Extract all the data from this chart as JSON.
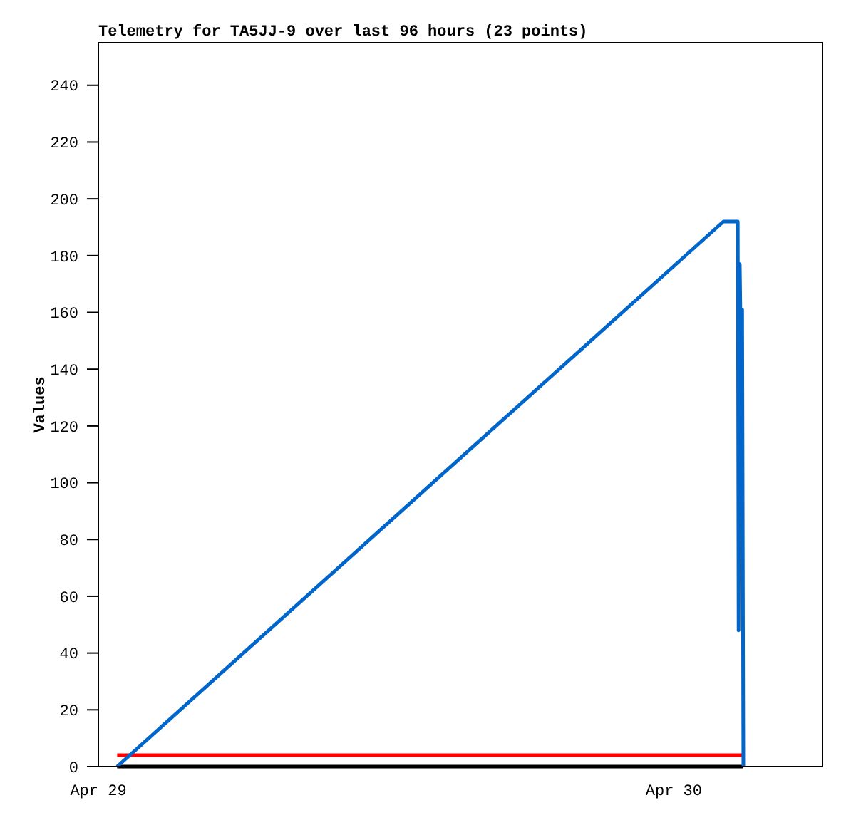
{
  "chart_data": {
    "type": "line",
    "title": "Telemetry for TA5JJ-9 over last 96 hours (23 points)",
    "ylabel": "Values",
    "xlim": [
      "--04-29",
      "--04-30T06:12"
    ],
    "xticks": [
      {
        "value": "--04-29",
        "label": "Apr 29"
      },
      {
        "value": "--04-30",
        "label": "Apr 30"
      }
    ],
    "ylim": [
      0,
      255
    ],
    "yticks": [
      0,
      20,
      40,
      60,
      80,
      100,
      120,
      140,
      160,
      180,
      200,
      220,
      240
    ],
    "grid": false,
    "marker": "none",
    "line_style": "solid",
    "series": [
      {
        "color": "#000000",
        "x": [
          "--04-29T00:47",
          "--04-30T02:54"
        ],
        "values": [
          0,
          0
        ]
      },
      {
        "color": "#ff0000",
        "x": [
          "--04-29T00:47",
          "--04-30T02:54"
        ],
        "values": [
          4,
          4
        ]
      },
      {
        "color": "#0066cc",
        "x": [
          "--04-29T00:47",
          "--04-30T02:04",
          "--04-30T02:40",
          "--04-30T02:42",
          "--04-30T02:45",
          "--04-30T02:48",
          "--04-30T02:51",
          "--04-30T02:54"
        ],
        "values": [
          0,
          192,
          192,
          48,
          177,
          145,
          161,
          0
        ]
      }
    ]
  }
}
